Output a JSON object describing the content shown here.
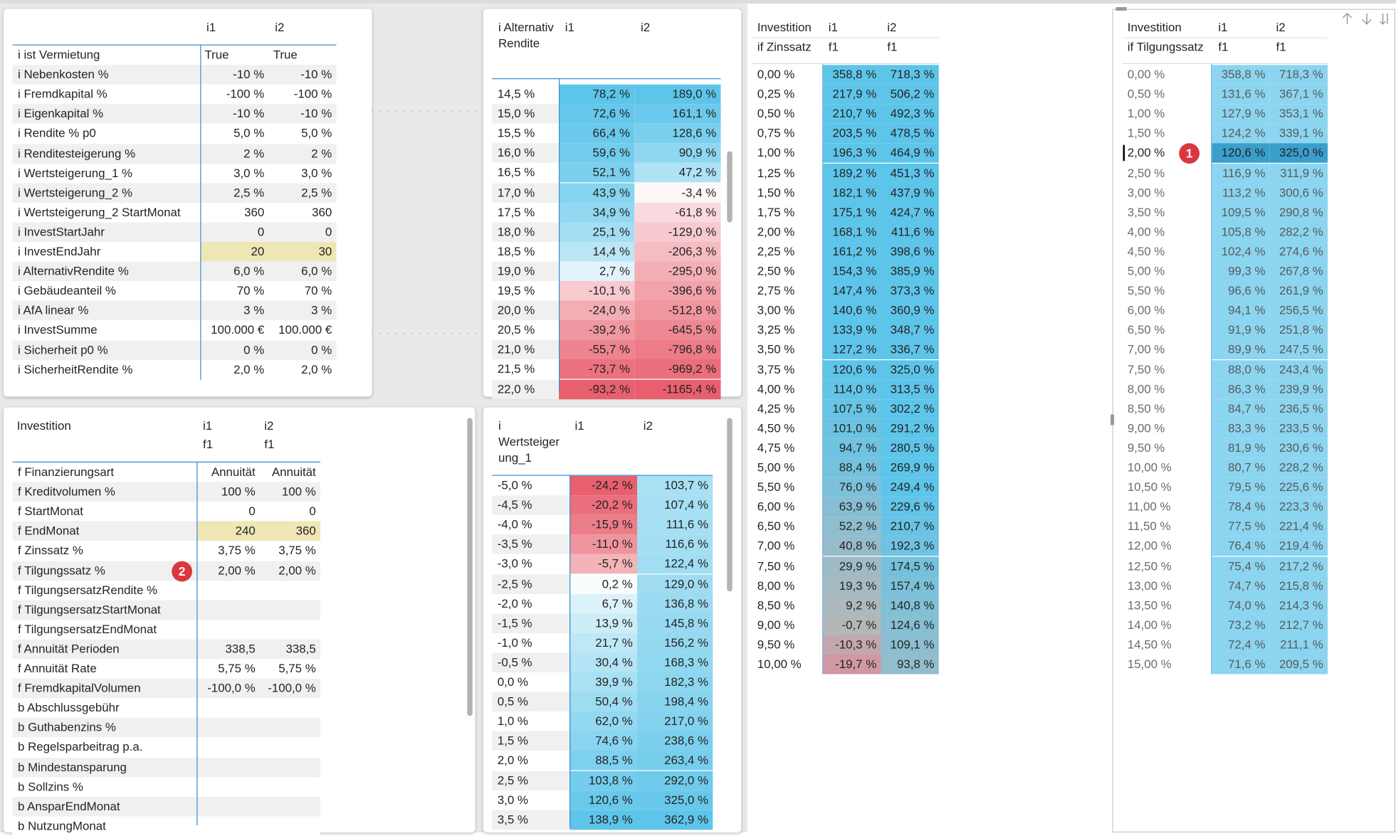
{
  "panels": {
    "top_left": {
      "columns": [
        "i1",
        "i2"
      ],
      "rows": [
        [
          "i ist Vermietung",
          "True",
          "True"
        ],
        [
          "i Nebenkosten %",
          "-10 %",
          "-10 %"
        ],
        [
          "i Fremdkapital %",
          "-100 %",
          "-100 %"
        ],
        [
          "i Eigenkapital %",
          "-10 %",
          "-10 %"
        ],
        [
          "i Rendite % p0",
          "5,0 %",
          "5,0 %"
        ],
        [
          "i Renditesteigerung %",
          "2 %",
          "2 %"
        ],
        [
          "i Wertsteigerung_1 %",
          "3,0 %",
          "3,0 %"
        ],
        [
          "i Wertsteigerung_2 %",
          "2,5 %",
          "2,5 %"
        ],
        [
          "i Wertsteigerung_2 StartMonat",
          "360",
          "360"
        ],
        [
          "i InvestStartJahr",
          "0",
          "0"
        ],
        [
          "i InvestEndJahr",
          "20",
          "30"
        ],
        [
          "i AlternativRendite %",
          "6,0 %",
          "6,0 %"
        ],
        [
          "i Gebäudeanteil %",
          "70 %",
          "70 %"
        ],
        [
          "i AfA linear %",
          "3 %",
          "3 %"
        ],
        [
          "i InvestSumme",
          "100.000 €",
          "100.000 €"
        ],
        [
          "i Sicherheit p0 %",
          "0 %",
          "0 %"
        ],
        [
          "i SicherheitRendite %",
          "2,0 %",
          "2,0 %"
        ]
      ]
    },
    "bottom_left": {
      "title": "Investition",
      "columns": [
        "i1",
        "i2"
      ],
      "subcolumns": [
        "f1",
        "f1"
      ],
      "rows": [
        [
          "f Finanzierungsart",
          "Annuität",
          "Annuität"
        ],
        [
          "f Kreditvolumen %",
          "100 %",
          "100 %"
        ],
        [
          "f StartMonat",
          "0",
          "0"
        ],
        [
          "f EndMonat",
          "240",
          "360"
        ],
        [
          "f Zinssatz %",
          "3,75 %",
          "3,75 %"
        ],
        [
          "f Tilgungssatz %",
          "2,00 %",
          "2,00 %"
        ],
        [
          "f TilgungsersatzRendite %"
        ],
        [
          "f TilgungsersatzStartMonat"
        ],
        [
          "f TilgungsersatzEndMonat"
        ],
        [
          "f Annuität Perioden",
          "338,5",
          "338,5"
        ],
        [
          "f Annuität Rate",
          "5,75 %",
          "5,75 %"
        ],
        [
          "f FremdkapitalVolumen",
          "-100,0 %",
          "-100,0 %"
        ],
        [
          "b Abschlussgebühr"
        ],
        [
          "b Guthabenzins %"
        ],
        [
          "b Regelsparbeitrag p.a."
        ],
        [
          "b Mindestansparung"
        ],
        [
          "b Sollzins %"
        ],
        [
          "b AnsparEndMonat"
        ],
        [
          "b NutzungMonat"
        ]
      ]
    },
    "alternativ_rendite": {
      "title": "i Alternativ Rendite",
      "columns": [
        "i1",
        "i2"
      ],
      "rows": [
        [
          "14,5 %",
          "78,2 %",
          "189,0 %"
        ],
        [
          "15,0 %",
          "72,6 %",
          "161,1 %"
        ],
        [
          "15,5 %",
          "66,4 %",
          "128,6 %"
        ],
        [
          "16,0 %",
          "59,6 %",
          "90,9 %"
        ],
        [
          "16,5 %",
          "52,1 %",
          "47,2 %"
        ],
        [
          "17,0 %",
          "43,9 %",
          "-3,4 %"
        ],
        [
          "17,5 %",
          "34,9 %",
          "-61,8 %"
        ],
        [
          "18,0 %",
          "25,1 %",
          "-129,0 %"
        ],
        [
          "18,5 %",
          "14,4 %",
          "-206,3 %"
        ],
        [
          "19,0 %",
          "2,7 %",
          "-295,0 %"
        ],
        [
          "19,5 %",
          "-10,1 %",
          "-396,6 %"
        ],
        [
          "20,0 %",
          "-24,0 %",
          "-512,8 %"
        ],
        [
          "20,5 %",
          "-39,2 %",
          "-645,5 %"
        ],
        [
          "21,0 %",
          "-55,7 %",
          "-796,8 %"
        ],
        [
          "21,5 %",
          "-73,7 %",
          "-969,2 %"
        ],
        [
          "22,0 %",
          "-93,2 %",
          "-1165,4 %"
        ]
      ]
    },
    "wertsteigerung": {
      "title": "i Wertsteigerung_1",
      "columns": [
        "i1",
        "i2"
      ],
      "rows": [
        [
          "-5,0 %",
          "-24,2 %",
          "103,7 %"
        ],
        [
          "-4,5 %",
          "-20,2 %",
          "107,4 %"
        ],
        [
          "-4,0 %",
          "-15,9 %",
          "111,6 %"
        ],
        [
          "-3,5 %",
          "-11,0 %",
          "116,6 %"
        ],
        [
          "-3,0 %",
          "-5,7 %",
          "122,4 %"
        ],
        [
          "-2,5 %",
          "0,2 %",
          "129,0 %"
        ],
        [
          "-2,0 %",
          "6,7 %",
          "136,8 %"
        ],
        [
          "-1,5 %",
          "13,9 %",
          "145,8 %"
        ],
        [
          "-1,0 %",
          "21,7 %",
          "156,2 %"
        ],
        [
          "-0,5 %",
          "30,4 %",
          "168,3 %"
        ],
        [
          "0,0 %",
          "39,9 %",
          "182,3 %"
        ],
        [
          "0,5 %",
          "50,4 %",
          "198,4 %"
        ],
        [
          "1,0 %",
          "62,0 %",
          "217,0 %"
        ],
        [
          "1,5 %",
          "74,6 %",
          "238,6 %"
        ],
        [
          "2,0 %",
          "88,5 %",
          "263,4 %"
        ],
        [
          "2,5 %",
          "103,8 %",
          "292,0 %"
        ],
        [
          "3,0 %",
          "120,6 %",
          "325,0 %"
        ],
        [
          "3,5 %",
          "138,9 %",
          "362,9 %"
        ]
      ]
    },
    "zinssatz": {
      "title": "Investition",
      "subtitle": "if Zinssatz",
      "columns": [
        "i1",
        "i2"
      ],
      "subcolumns": [
        "f1",
        "f1"
      ],
      "rows": [
        [
          "0,00 %",
          "358,8 %",
          "718,3 %"
        ],
        [
          "0,25 %",
          "217,9 %",
          "506,2 %"
        ],
        [
          "0,50 %",
          "210,7 %",
          "492,3 %"
        ],
        [
          "0,75 %",
          "203,5 %",
          "478,5 %"
        ],
        [
          "1,00 %",
          "196,3 %",
          "464,9 %"
        ],
        [
          "1,25 %",
          "189,2 %",
          "451,3 %"
        ],
        [
          "1,50 %",
          "182,1 %",
          "437,9 %"
        ],
        [
          "1,75 %",
          "175,1 %",
          "424,7 %"
        ],
        [
          "2,00 %",
          "168,1 %",
          "411,6 %"
        ],
        [
          "2,25 %",
          "161,2 %",
          "398,6 %"
        ],
        [
          "2,50 %",
          "154,3 %",
          "385,9 %"
        ],
        [
          "2,75 %",
          "147,4 %",
          "373,3 %"
        ],
        [
          "3,00 %",
          "140,6 %",
          "360,9 %"
        ],
        [
          "3,25 %",
          "133,9 %",
          "348,7 %"
        ],
        [
          "3,50 %",
          "127,2 %",
          "336,7 %"
        ],
        [
          "3,75 %",
          "120,6 %",
          "325,0 %"
        ],
        [
          "4,00 %",
          "114,0 %",
          "313,5 %"
        ],
        [
          "4,25 %",
          "107,5 %",
          "302,2 %"
        ],
        [
          "4,50 %",
          "101,0 %",
          "291,2 %"
        ],
        [
          "4,75 %",
          "94,7 %",
          "280,5 %"
        ],
        [
          "5,00 %",
          "88,4 %",
          "269,9 %"
        ],
        [
          "5,50 %",
          "76,0 %",
          "249,4 %"
        ],
        [
          "6,00 %",
          "63,9 %",
          "229,6 %"
        ],
        [
          "6,50 %",
          "52,2 %",
          "210,7 %"
        ],
        [
          "7,00 %",
          "40,8 %",
          "192,3 %"
        ],
        [
          "7,50 %",
          "29,9 %",
          "174,5 %"
        ],
        [
          "8,00 %",
          "19,3 %",
          "157,4 %"
        ],
        [
          "8,50 %",
          "9,2 %",
          "140,8 %"
        ],
        [
          "9,00 %",
          "-0,7 %",
          "124,6 %"
        ],
        [
          "9,50 %",
          "-10,3 %",
          "109,1 %"
        ],
        [
          "10,00 %",
          "-19,7 %",
          "93,8 %"
        ]
      ]
    },
    "tilgungssatz": {
      "title": "Investition",
      "subtitle": "if Tilgungssatz",
      "columns": [
        "i1",
        "i2"
      ],
      "subcolumns": [
        "f1",
        "f1"
      ],
      "rows": [
        [
          "0,00 %",
          "358,8 %",
          "718,3 %"
        ],
        [
          "0,50 %",
          "131,6 %",
          "367,1 %"
        ],
        [
          "1,00 %",
          "127,9 %",
          "353,1 %"
        ],
        [
          "1,50 %",
          "124,2 %",
          "339,1 %"
        ],
        [
          "2,00 %",
          "120,6 %",
          "325,0 %"
        ],
        [
          "2,50 %",
          "116,9 %",
          "311,9 %"
        ],
        [
          "3,00 %",
          "113,2 %",
          "300,6 %"
        ],
        [
          "3,50 %",
          "109,5 %",
          "290,8 %"
        ],
        [
          "4,00 %",
          "105,8 %",
          "282,2 %"
        ],
        [
          "4,50 %",
          "102,4 %",
          "274,6 %"
        ],
        [
          "5,00 %",
          "99,3 %",
          "267,8 %"
        ],
        [
          "5,50 %",
          "96,6 %",
          "261,9 %"
        ],
        [
          "6,00 %",
          "94,1 %",
          "256,5 %"
        ],
        [
          "6,50 %",
          "91,9 %",
          "251,8 %"
        ],
        [
          "7,00 %",
          "89,9 %",
          "247,5 %"
        ],
        [
          "7,50 %",
          "88,0 %",
          "243,4 %"
        ],
        [
          "8,00 %",
          "86,3 %",
          "239,9 %"
        ],
        [
          "8,50 %",
          "84,7 %",
          "236,5 %"
        ],
        [
          "9,00 %",
          "83,3 %",
          "233,5 %"
        ],
        [
          "9,50 %",
          "81,9 %",
          "230,6 %"
        ],
        [
          "10,00 %",
          "80,7 %",
          "228,2 %"
        ],
        [
          "10,50 %",
          "79,5 %",
          "225,6 %"
        ],
        [
          "11,00 %",
          "78,4 %",
          "223,3 %"
        ],
        [
          "11,50 %",
          "77,5 %",
          "221,4 %"
        ],
        [
          "12,00 %",
          "76,4 %",
          "219,4 %"
        ],
        [
          "12,50 %",
          "75,4 %",
          "217,2 %"
        ],
        [
          "13,00 %",
          "74,7 %",
          "215,8 %"
        ],
        [
          "13,50 %",
          "74,0 %",
          "214,3 %"
        ],
        [
          "14,00 %",
          "73,2 %",
          "212,7 %"
        ],
        [
          "14,50 %",
          "72,4 %",
          "211,1 %"
        ],
        [
          "15,00 %",
          "71,6 %",
          "209,5 %"
        ]
      ]
    }
  },
  "markers": [
    "1",
    "2"
  ]
}
